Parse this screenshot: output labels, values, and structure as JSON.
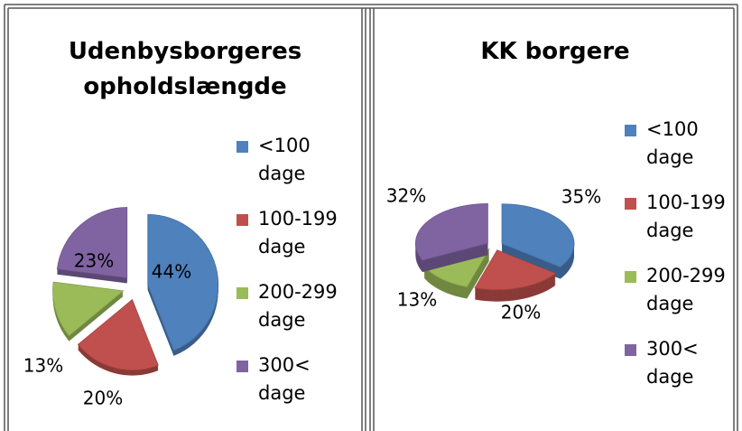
{
  "chart_data": [
    {
      "type": "pie",
      "title": "Udenbysborgeres opholdslængde",
      "categories": [
        "<100 dage",
        "100-199 dage",
        "200-299 dage",
        "300< dage"
      ],
      "values": [
        44,
        20,
        13,
        23
      ],
      "value_labels": [
        "44%",
        "20%",
        "13%",
        "23%"
      ],
      "colors": [
        "#4f81bd",
        "#c0504d",
        "#9bbb59",
        "#8064a2"
      ],
      "legend": "right"
    },
    {
      "type": "pie",
      "title": "KK borgere",
      "categories": [
        "<100 dage",
        "100-199 dage",
        "200-299 dage",
        "300< dage"
      ],
      "values": [
        35,
        20,
        13,
        32
      ],
      "value_labels": [
        "35%",
        "20%",
        "13%",
        "32%"
      ],
      "colors": [
        "#4f81bd",
        "#c0504d",
        "#9bbb59",
        "#8064a2"
      ],
      "legend": "right"
    }
  ]
}
